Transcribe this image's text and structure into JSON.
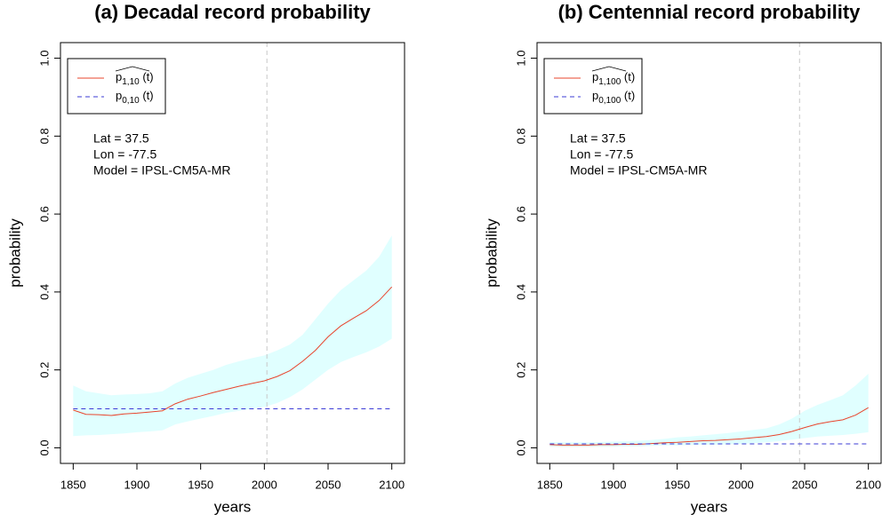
{
  "chart_data": [
    {
      "type": "line",
      "title": "(a) Decadal record probability",
      "xlabel": "years",
      "ylabel": "probability",
      "x": [
        1850,
        1860,
        1870,
        1880,
        1890,
        1900,
        1910,
        1920,
        1930,
        1940,
        1950,
        1960,
        1970,
        1980,
        1990,
        2000,
        2010,
        2020,
        2030,
        2040,
        2050,
        2060,
        2070,
        2080,
        2090,
        2100
      ],
      "series": [
        {
          "name": "p1,10 (t)",
          "color": "#e8442c",
          "dashed": false,
          "values": [
            0.097,
            0.086,
            0.085,
            0.083,
            0.087,
            0.089,
            0.092,
            0.095,
            0.113,
            0.125,
            0.133,
            0.142,
            0.15,
            0.158,
            0.165,
            0.172,
            0.183,
            0.198,
            0.222,
            0.25,
            0.285,
            0.313,
            0.333,
            0.352,
            0.378,
            0.413
          ]
        },
        {
          "name": "p0,10 (t)",
          "color": "#3b3bd6",
          "dashed": true,
          "values": [
            0.1,
            0.1,
            0.1,
            0.1,
            0.1,
            0.1,
            0.1,
            0.1,
            0.1,
            0.1,
            0.1,
            0.1,
            0.1,
            0.1,
            0.1,
            0.1,
            0.1,
            0.1,
            0.1,
            0.1,
            0.1,
            0.1,
            0.1,
            0.1,
            0.1,
            0.1
          ]
        }
      ],
      "band": {
        "color": "#e0ffff",
        "upper": [
          0.16,
          0.145,
          0.14,
          0.135,
          0.137,
          0.138,
          0.14,
          0.145,
          0.165,
          0.18,
          0.19,
          0.2,
          0.213,
          0.222,
          0.23,
          0.237,
          0.25,
          0.265,
          0.29,
          0.33,
          0.37,
          0.405,
          0.43,
          0.455,
          0.49,
          0.545
        ],
        "lower": [
          0.03,
          0.032,
          0.033,
          0.035,
          0.037,
          0.04,
          0.042,
          0.045,
          0.06,
          0.068,
          0.075,
          0.082,
          0.09,
          0.095,
          0.1,
          0.105,
          0.115,
          0.13,
          0.15,
          0.175,
          0.2,
          0.22,
          0.233,
          0.245,
          0.26,
          0.28
        ]
      },
      "vline": 2002,
      "annotations": [
        "Lat = 37.5",
        "Lon = -77.5",
        "Model = IPSL-CM5A-MR"
      ],
      "xlim": [
        1840,
        2110
      ],
      "xticks": [
        1850,
        1900,
        1950,
        2000,
        2050,
        2100
      ],
      "ylim": [
        -0.04,
        1.04
      ],
      "yticks": [
        {
          "value": 0,
          "label": "0.0"
        },
        {
          "value": 0.2,
          "label": "0.2"
        },
        {
          "value": 0.4,
          "label": "0.4"
        },
        {
          "value": 0.6,
          "label": "0.6"
        },
        {
          "value": 0.8,
          "label": "0.8"
        },
        {
          "value": 1,
          "label": "1.0"
        }
      ],
      "legend": "top-left",
      "grid": false
    },
    {
      "type": "line",
      "title": "(b) Centennial record probability",
      "xlabel": "years",
      "ylabel": "probability",
      "x": [
        1850,
        1860,
        1870,
        1880,
        1890,
        1900,
        1910,
        1920,
        1930,
        1940,
        1950,
        1960,
        1970,
        1980,
        1990,
        2000,
        2010,
        2020,
        2030,
        2040,
        2050,
        2060,
        2070,
        2080,
        2090,
        2100
      ],
      "series": [
        {
          "name": "p1,100 (t)",
          "color": "#e8442c",
          "dashed": false,
          "values": [
            0.008,
            0.007,
            0.007,
            0.007,
            0.008,
            0.008,
            0.009,
            0.009,
            0.011,
            0.013,
            0.014,
            0.016,
            0.018,
            0.019,
            0.021,
            0.023,
            0.026,
            0.029,
            0.034,
            0.042,
            0.052,
            0.061,
            0.067,
            0.072,
            0.084,
            0.103
          ]
        },
        {
          "name": "p0,100 (t)",
          "color": "#3b3bd6",
          "dashed": true,
          "values": [
            0.01,
            0.01,
            0.01,
            0.01,
            0.01,
            0.01,
            0.01,
            0.01,
            0.01,
            0.01,
            0.01,
            0.01,
            0.01,
            0.01,
            0.01,
            0.01,
            0.01,
            0.01,
            0.01,
            0.01,
            0.01,
            0.01,
            0.01,
            0.01,
            0.01,
            0.01
          ]
        }
      ],
      "band": {
        "color": "#e0ffff",
        "upper": [
          0.015,
          0.014,
          0.014,
          0.014,
          0.015,
          0.016,
          0.017,
          0.018,
          0.02,
          0.023,
          0.027,
          0.029,
          0.032,
          0.035,
          0.038,
          0.042,
          0.046,
          0.05,
          0.06,
          0.075,
          0.095,
          0.11,
          0.122,
          0.135,
          0.16,
          0.19
        ],
        "lower": [
          0.003,
          0.003,
          0.003,
          0.003,
          0.003,
          0.003,
          0.004,
          0.004,
          0.005,
          0.006,
          0.006,
          0.007,
          0.008,
          0.008,
          0.009,
          0.01,
          0.012,
          0.014,
          0.017,
          0.021,
          0.025,
          0.029,
          0.031,
          0.033,
          0.036,
          0.04
        ]
      },
      "vline": 2046,
      "annotations": [
        "Lat = 37.5",
        "Lon = -77.5",
        "Model = IPSL-CM5A-MR"
      ],
      "xlim": [
        1840,
        2110
      ],
      "xticks": [
        1850,
        1900,
        1950,
        2000,
        2050,
        2100
      ],
      "ylim": [
        -0.04,
        1.04
      ],
      "yticks": [
        {
          "value": 0,
          "label": "0.0"
        },
        {
          "value": 0.2,
          "label": "0.2"
        },
        {
          "value": 0.4,
          "label": "0.4"
        },
        {
          "value": 0.6,
          "label": "0.6"
        },
        {
          "value": 0.8,
          "label": "0.8"
        },
        {
          "value": 1,
          "label": "1.0"
        }
      ],
      "legend": "top-left",
      "grid": false
    }
  ]
}
